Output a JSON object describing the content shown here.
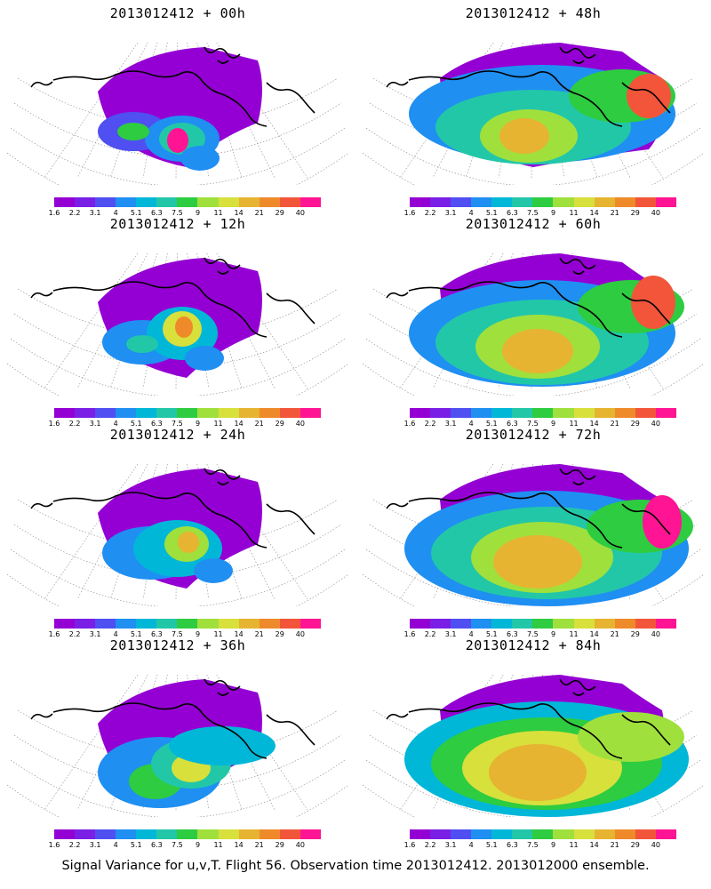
{
  "panels": [
    {
      "title": "2013012412 + 00h",
      "col": 0,
      "row": 0,
      "lead": 0
    },
    {
      "title": "2013012412 + 48h",
      "col": 1,
      "row": 0,
      "lead": 48
    },
    {
      "title": "2013012412 + 12h",
      "col": 0,
      "row": 1,
      "lead": 12
    },
    {
      "title": "2013012412 + 60h",
      "col": 1,
      "row": 1,
      "lead": 60
    },
    {
      "title": "2013012412 + 24h",
      "col": 0,
      "row": 2,
      "lead": 24
    },
    {
      "title": "2013012412 + 72h",
      "col": 1,
      "row": 2,
      "lead": 72
    },
    {
      "title": "2013012412 + 36h",
      "col": 0,
      "row": 3,
      "lead": 36
    },
    {
      "title": "2013012412 + 84h",
      "col": 1,
      "row": 3,
      "lead": 84
    }
  ],
  "colorbar": {
    "labels": [
      "1.6",
      "2.2",
      "3.1",
      "4",
      "5.1",
      "6.3",
      "7.5",
      "9",
      "11",
      "14",
      "21",
      "29",
      "40"
    ],
    "colors": [
      "#9400d3",
      "#7a1fe6",
      "#4f4ff2",
      "#1f8ff2",
      "#00b7d8",
      "#22c7a8",
      "#2ecc40",
      "#a0e03c",
      "#d8e03c",
      "#e6b430",
      "#ef8a2a",
      "#f2553a",
      "#ff1493"
    ]
  },
  "footer": "Signal Variance for u,v,T. Flight 56. Observation time 2013012412. 2013012000 ensemble."
}
